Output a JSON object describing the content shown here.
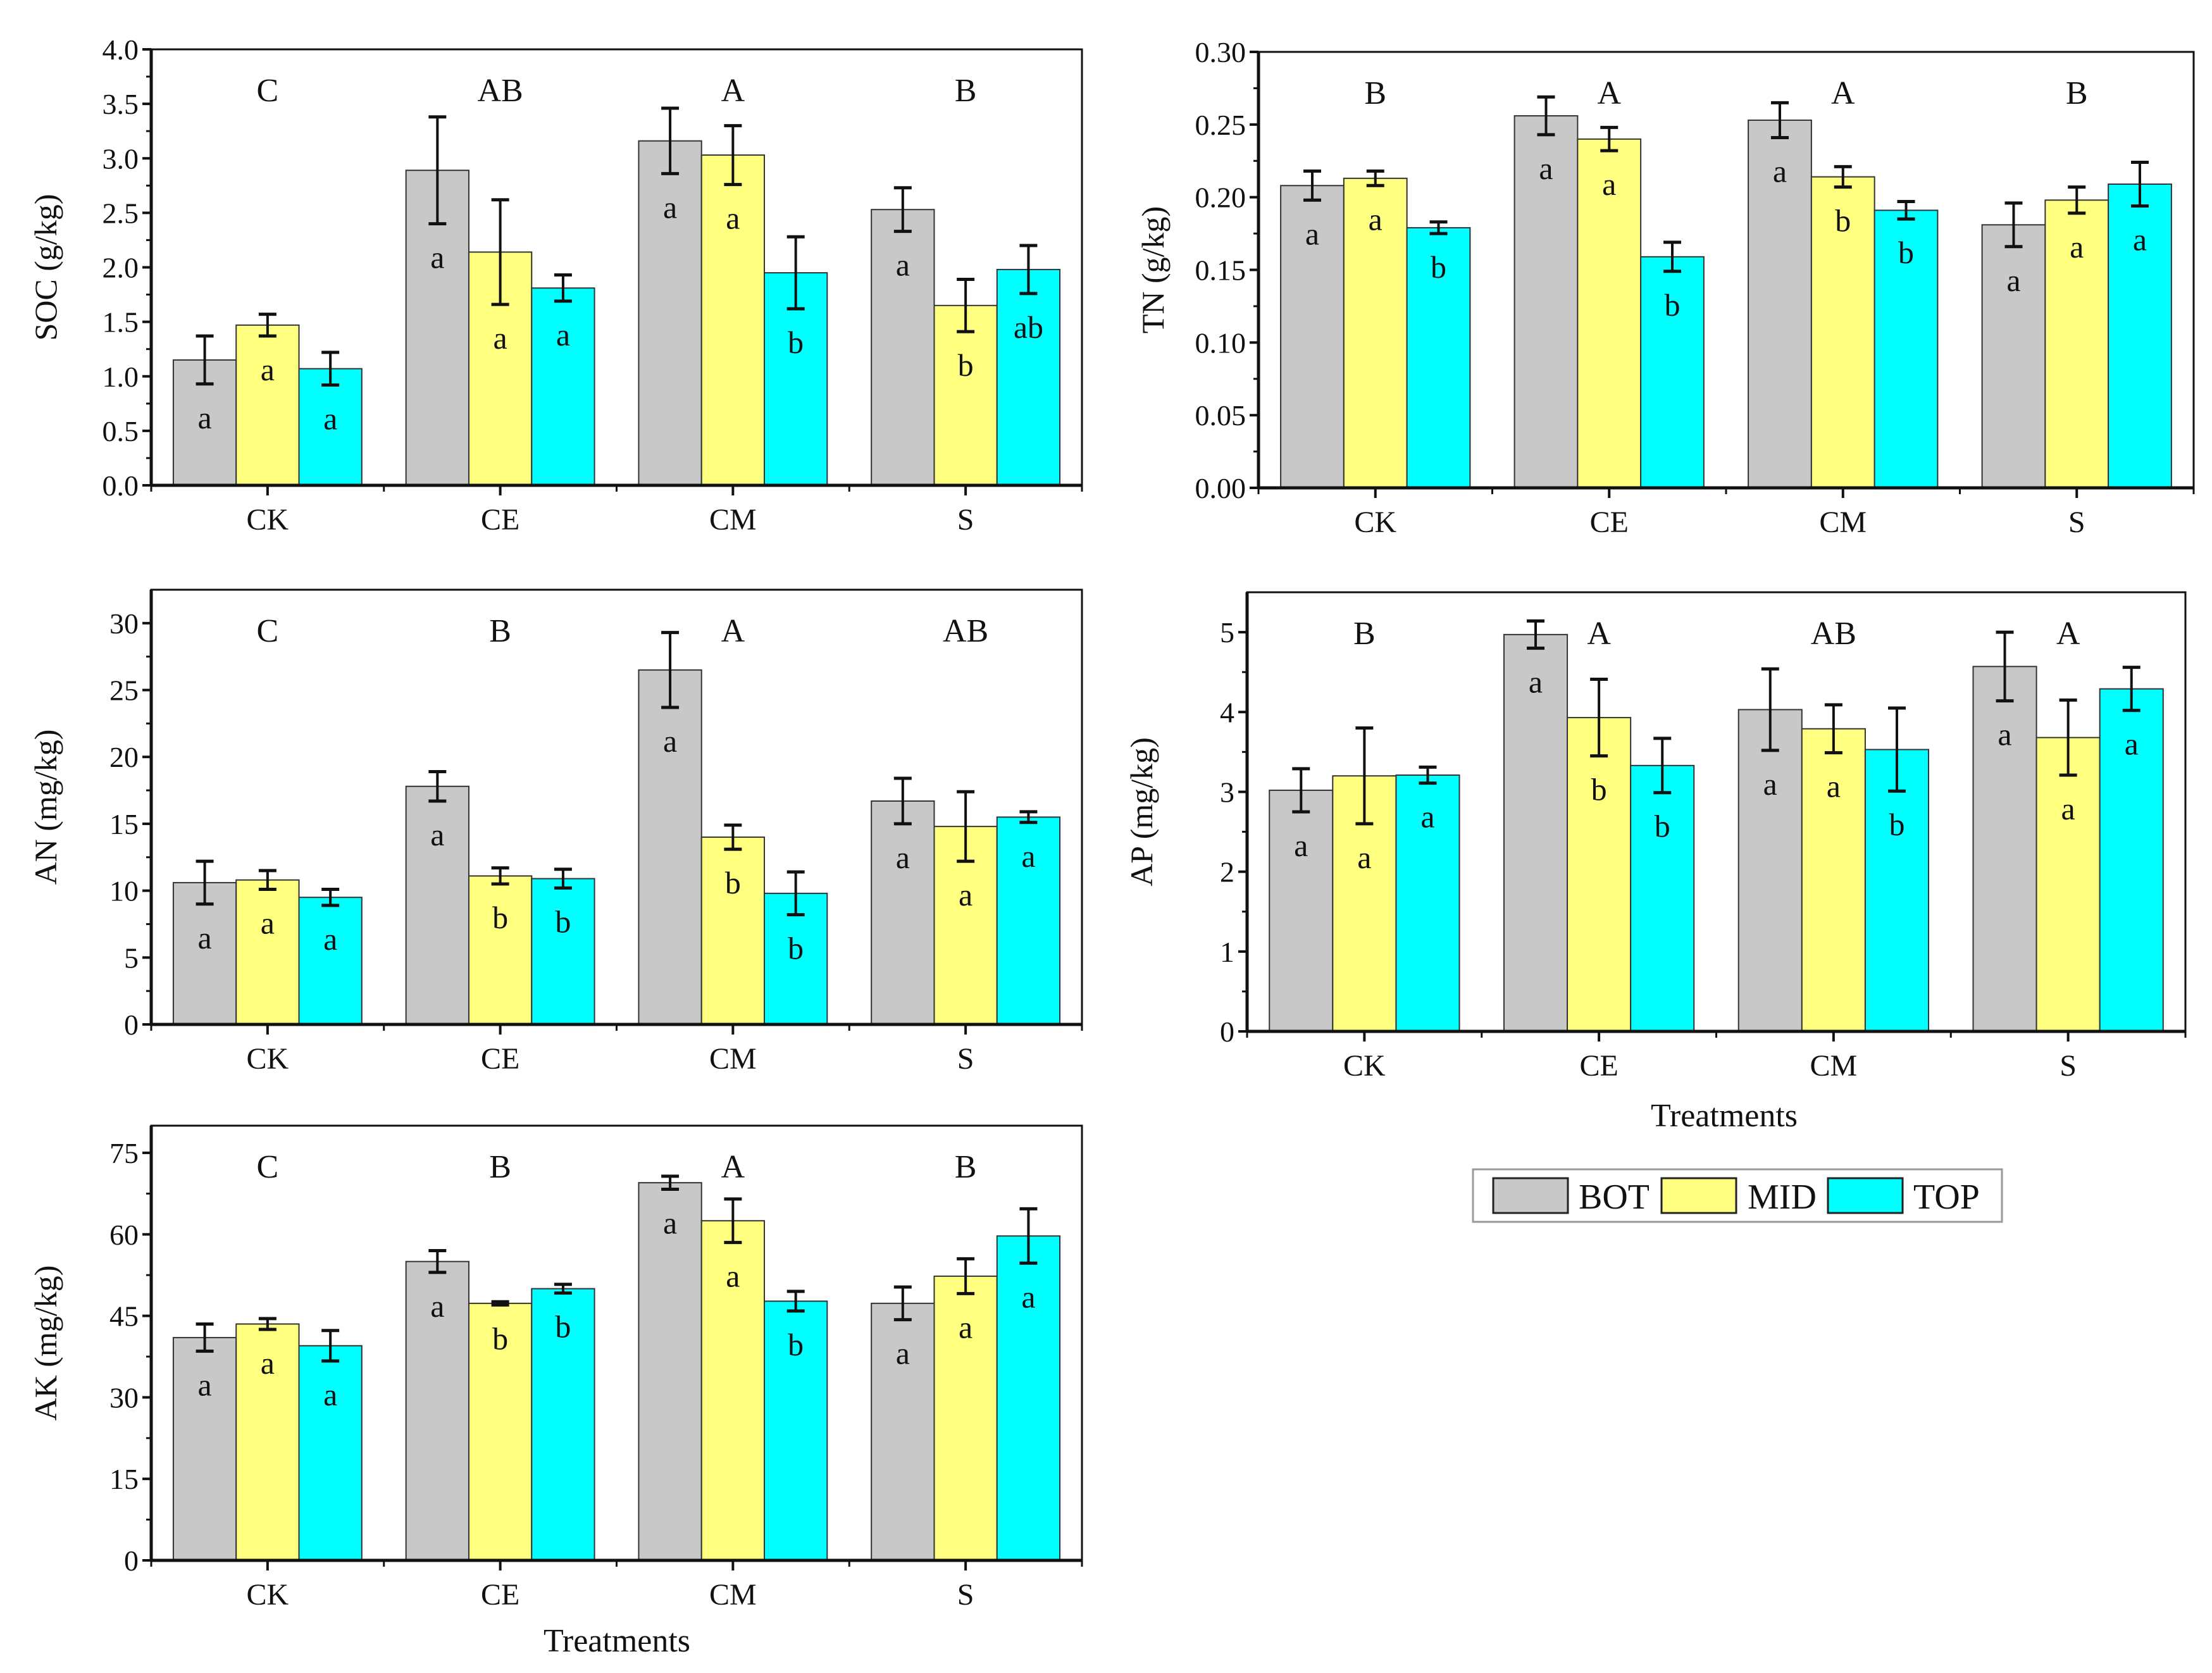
{
  "legend": {
    "items": [
      {
        "label": "BOT",
        "color": "#c8c8c8"
      },
      {
        "label": "MID",
        "color": "#ffff80"
      },
      {
        "label": "TOP",
        "color": "#00ffff"
      }
    ]
  },
  "chart_data": [
    {
      "type": "bar",
      "id": "soc",
      "ylabel": "SOC (g/kg)",
      "xlabel": "",
      "categories": [
        "CK",
        "CE",
        "CM",
        "S"
      ],
      "ylim": [
        0,
        4.0
      ],
      "yticks": [
        "0.0",
        "0.5",
        "1.0",
        "1.5",
        "2.0",
        "2.5",
        "3.0",
        "3.5",
        "4.0"
      ],
      "ytick_values": [
        0,
        0.5,
        1,
        1.5,
        2,
        2.5,
        3,
        3.5,
        4
      ],
      "group_letters": [
        "C",
        "AB",
        "A",
        "B"
      ],
      "series": [
        {
          "name": "BOT",
          "values": [
            1.15,
            2.89,
            3.16,
            2.53
          ],
          "errors": [
            0.22,
            0.49,
            0.3,
            0.2
          ],
          "letters": [
            "a",
            "a",
            "a",
            "a"
          ]
        },
        {
          "name": "MID",
          "values": [
            1.47,
            2.14,
            3.03,
            1.65
          ],
          "errors": [
            0.1,
            0.48,
            0.27,
            0.24
          ],
          "letters": [
            "a",
            "a",
            "a",
            "b"
          ]
        },
        {
          "name": "TOP",
          "values": [
            1.07,
            1.81,
            1.95,
            1.98
          ],
          "errors": [
            0.15,
            0.12,
            0.33,
            0.22
          ],
          "letters": [
            "a",
            "a",
            "b",
            "ab"
          ]
        }
      ]
    },
    {
      "type": "bar",
      "id": "tn",
      "ylabel": "TN (g/kg)",
      "xlabel": "",
      "categories": [
        "CK",
        "CE",
        "CM",
        "S"
      ],
      "ylim": [
        0,
        0.3
      ],
      "yticks": [
        "0.00",
        "0.05",
        "0.10",
        "0.15",
        "0.20",
        "0.25",
        "0.30"
      ],
      "ytick_values": [
        0,
        0.05,
        0.1,
        0.15,
        0.2,
        0.25,
        0.3
      ],
      "group_letters": [
        "B",
        "A",
        "A",
        "B"
      ],
      "series": [
        {
          "name": "BOT",
          "values": [
            0.208,
            0.256,
            0.253,
            0.181
          ],
          "errors": [
            0.01,
            0.013,
            0.012,
            0.015
          ],
          "letters": [
            "a",
            "a",
            "a",
            "a"
          ]
        },
        {
          "name": "MID",
          "values": [
            0.213,
            0.24,
            0.214,
            0.198
          ],
          "errors": [
            0.005,
            0.008,
            0.007,
            0.009
          ],
          "letters": [
            "a",
            "a",
            "b",
            "a"
          ]
        },
        {
          "name": "TOP",
          "values": [
            0.179,
            0.159,
            0.191,
            0.209
          ],
          "errors": [
            0.004,
            0.01,
            0.006,
            0.015
          ],
          "letters": [
            "b",
            "b",
            "b",
            "a"
          ]
        }
      ]
    },
    {
      "type": "bar",
      "id": "an",
      "ylabel": "AN (mg/kg)",
      "xlabel": "",
      "categories": [
        "CK",
        "CE",
        "CM",
        "S"
      ],
      "ylim": [
        0,
        32.5
      ],
      "yticks": [
        "0",
        "5",
        "10",
        "15",
        "20",
        "25",
        "30"
      ],
      "ytick_values": [
        0,
        5,
        10,
        15,
        20,
        25,
        30
      ],
      "group_letters": [
        "C",
        "B",
        "A",
        "AB"
      ],
      "series": [
        {
          "name": "BOT",
          "values": [
            10.6,
            17.8,
            26.5,
            16.7
          ],
          "errors": [
            1.6,
            1.1,
            2.8,
            1.7
          ],
          "letters": [
            "a",
            "a",
            "a",
            "a"
          ]
        },
        {
          "name": "MID",
          "values": [
            10.8,
            11.1,
            14.0,
            14.8
          ],
          "errors": [
            0.7,
            0.6,
            0.9,
            2.6
          ],
          "letters": [
            "a",
            "b",
            "b",
            "a"
          ]
        },
        {
          "name": "TOP",
          "values": [
            9.5,
            10.9,
            9.8,
            15.5
          ],
          "errors": [
            0.6,
            0.7,
            1.6,
            0.4
          ],
          "letters": [
            "a",
            "b",
            "b",
            "a"
          ]
        }
      ]
    },
    {
      "type": "bar",
      "id": "ap",
      "ylabel": "AP (mg/kg)",
      "xlabel": "Treatments",
      "categories": [
        "CK",
        "CE",
        "CM",
        "S"
      ],
      "ylim": [
        0,
        5.5
      ],
      "yticks": [
        "0",
        "1",
        "2",
        "3",
        "4",
        "5"
      ],
      "ytick_values": [
        0,
        1,
        2,
        3,
        4,
        5
      ],
      "group_letters": [
        "B",
        "A",
        "AB",
        "A"
      ],
      "series": [
        {
          "name": "BOT",
          "values": [
            3.02,
            4.97,
            4.03,
            4.57
          ],
          "errors": [
            0.27,
            0.17,
            0.51,
            0.43
          ],
          "letters": [
            "a",
            "a",
            "a",
            "a"
          ]
        },
        {
          "name": "MID",
          "values": [
            3.2,
            3.93,
            3.79,
            3.68
          ],
          "errors": [
            0.6,
            0.48,
            0.3,
            0.47
          ],
          "letters": [
            "a",
            "b",
            "a",
            "a"
          ]
        },
        {
          "name": "TOP",
          "values": [
            3.21,
            3.33,
            3.53,
            4.29
          ],
          "errors": [
            0.1,
            0.34,
            0.52,
            0.27
          ],
          "letters": [
            "a",
            "b",
            "b",
            "a"
          ]
        }
      ]
    },
    {
      "type": "bar",
      "id": "ak",
      "ylabel": "AK (mg/kg)",
      "xlabel": "Treatments",
      "categories": [
        "CK",
        "CE",
        "CM",
        "S"
      ],
      "ylim": [
        0,
        80
      ],
      "yticks": [
        "0",
        "15",
        "30",
        "45",
        "60",
        "75"
      ],
      "ytick_values": [
        0,
        15,
        30,
        45,
        60,
        75
      ],
      "group_letters": [
        "C",
        "B",
        "A",
        "B"
      ],
      "series": [
        {
          "name": "BOT",
          "values": [
            41.0,
            55.0,
            69.5,
            47.3
          ],
          "errors": [
            2.5,
            2.0,
            1.2,
            3.0
          ],
          "letters": [
            "a",
            "a",
            "a",
            "a"
          ]
        },
        {
          "name": "MID",
          "values": [
            43.5,
            47.3,
            62.5,
            52.3
          ],
          "errors": [
            1.0,
            0.3,
            4.0,
            3.2
          ],
          "letters": [
            "a",
            "b",
            "a",
            "a"
          ]
        },
        {
          "name": "TOP",
          "values": [
            39.5,
            50.0,
            47.7,
            59.7
          ],
          "errors": [
            2.8,
            0.8,
            1.8,
            5.0
          ],
          "letters": [
            "a",
            "b",
            "b",
            "a"
          ]
        }
      ]
    }
  ]
}
